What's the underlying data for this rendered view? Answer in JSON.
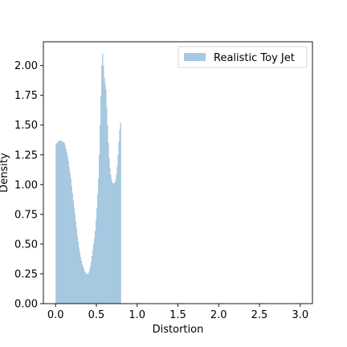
{
  "chart_data": {
    "type": "bar",
    "xlabel": "Distortion",
    "ylabel": "Density",
    "xlim": [
      -0.15,
      3.15
    ],
    "ylim": [
      0,
      2.2
    ],
    "x_ticks": [
      "0.0",
      "0.5",
      "1.0",
      "1.5",
      "2.0",
      "2.5",
      "3.0"
    ],
    "x_tick_values": [
      0.0,
      0.5,
      1.0,
      1.5,
      2.0,
      2.5,
      3.0
    ],
    "y_ticks": [
      "0.00",
      "0.25",
      "0.50",
      "0.75",
      "1.00",
      "1.25",
      "1.50",
      "1.75",
      "2.00"
    ],
    "y_tick_values": [
      0.0,
      0.25,
      0.5,
      0.75,
      1.0,
      1.25,
      1.5,
      1.75,
      2.0
    ],
    "grid": false,
    "legend_position": "top-right",
    "bar_color": "#a6c8e0",
    "series": [
      {
        "name": "Realistic Toy Jet",
        "bin_start": 0.0,
        "bin_width": 0.01,
        "values": [
          1.34,
          1.35,
          1.36,
          1.36,
          1.37,
          1.37,
          1.37,
          1.36,
          1.36,
          1.36,
          1.35,
          1.33,
          1.3,
          1.27,
          1.24,
          1.2,
          1.15,
          1.1,
          1.05,
          0.99,
          0.93,
          0.87,
          0.81,
          0.75,
          0.69,
          0.63,
          0.57,
          0.52,
          0.47,
          0.43,
          0.39,
          0.36,
          0.33,
          0.31,
          0.29,
          0.27,
          0.26,
          0.25,
          0.25,
          0.25,
          0.26,
          0.28,
          0.31,
          0.35,
          0.4,
          0.45,
          0.5,
          0.55,
          0.61,
          0.7,
          0.8,
          0.92,
          1.05,
          1.25,
          1.5,
          1.75,
          2.0,
          2.1,
          2.0,
          1.9,
          1.85,
          1.8,
          1.65,
          1.5,
          1.35,
          1.22,
          1.14,
          1.08,
          1.04,
          1.02,
          1.01,
          1.01,
          1.02,
          1.04,
          1.08,
          1.15,
          1.25,
          1.36,
          1.46,
          1.52
        ]
      }
    ]
  }
}
